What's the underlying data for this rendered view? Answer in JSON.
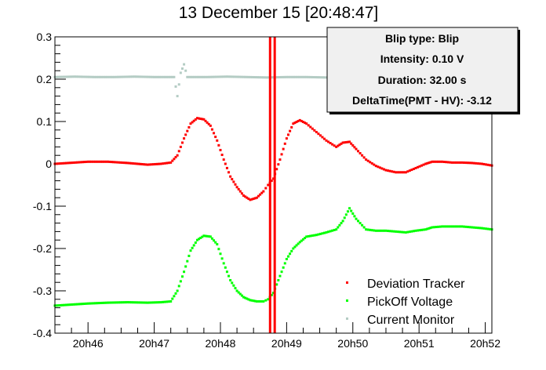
{
  "chart_data": {
    "type": "scatter",
    "title": "13 December 15 [20:48:47]",
    "xlabel": "",
    "ylabel": "",
    "x_unit": "minutes",
    "xlim": [
      45.5,
      52.1
    ],
    "ylim": [
      -0.4,
      0.3
    ],
    "x_tick_values": [
      46,
      47,
      48,
      49,
      50,
      51,
      52
    ],
    "x_tick_labels": [
      "20h46",
      "20h47",
      "20h48",
      "20h49",
      "20h50",
      "20h51",
      "20h52"
    ],
    "y_tick_values": [
      -0.4,
      -0.3,
      -0.2,
      -0.1,
      0,
      0.1,
      0.2,
      0.3
    ],
    "y_tick_labels": [
      "-0.4",
      "-0.3",
      "-0.2",
      "-0.1",
      "0",
      "0.1",
      "0.2",
      "0.3"
    ],
    "grid": false,
    "legend_position": "bottom-right",
    "markers": [
      48.75,
      48.82
    ],
    "marker_color": "#ff0000",
    "info_box": {
      "lines": [
        "Blip type: Blip",
        "Intensity: 0.10 V",
        "Duration: 32.00 s",
        "DeltaTime(PMT - HV): -3.12"
      ]
    },
    "series": [
      {
        "name": "Deviation Tracker",
        "color": "#ff0000",
        "x": [
          45.5,
          45.7,
          46.0,
          46.3,
          46.6,
          46.9,
          47.1,
          47.25,
          47.35,
          47.45,
          47.55,
          47.65,
          47.75,
          47.85,
          47.95,
          48.05,
          48.15,
          48.25,
          48.35,
          48.45,
          48.55,
          48.65,
          48.72,
          48.8,
          48.9,
          49.0,
          49.1,
          49.2,
          49.3,
          49.45,
          49.6,
          49.75,
          49.85,
          49.95,
          50.05,
          50.2,
          50.35,
          50.5,
          50.65,
          50.8,
          50.95,
          51.1,
          51.2,
          51.35,
          51.5,
          51.65,
          51.8,
          51.95,
          52.1
        ],
        "y": [
          0.0,
          0.002,
          0.005,
          0.005,
          0.002,
          -0.002,
          0.0,
          0.003,
          0.02,
          0.06,
          0.095,
          0.108,
          0.105,
          0.09,
          0.055,
          0.01,
          -0.03,
          -0.055,
          -0.075,
          -0.085,
          -0.08,
          -0.065,
          -0.05,
          -0.035,
          0.01,
          0.06,
          0.095,
          0.103,
          0.095,
          0.075,
          0.055,
          0.04,
          0.05,
          0.052,
          0.035,
          0.01,
          -0.005,
          -0.015,
          -0.02,
          -0.02,
          -0.01,
          0.0,
          0.005,
          0.005,
          0.003,
          0.003,
          0.002,
          0.0,
          -0.004
        ]
      },
      {
        "name": "PickOff Voltage",
        "color": "#00ff00",
        "x": [
          45.5,
          45.7,
          46.0,
          46.3,
          46.6,
          46.9,
          47.1,
          47.25,
          47.35,
          47.45,
          47.55,
          47.65,
          47.75,
          47.85,
          47.95,
          48.05,
          48.15,
          48.25,
          48.35,
          48.45,
          48.55,
          48.65,
          48.72,
          48.8,
          48.9,
          49.0,
          49.1,
          49.2,
          49.3,
          49.45,
          49.6,
          49.75,
          49.85,
          49.95,
          50.05,
          50.2,
          50.35,
          50.5,
          50.65,
          50.8,
          50.95,
          51.1,
          51.2,
          51.35,
          51.5,
          51.65,
          51.8,
          51.95,
          52.1
        ],
        "y": [
          -0.335,
          -0.333,
          -0.33,
          -0.328,
          -0.327,
          -0.328,
          -0.327,
          -0.325,
          -0.3,
          -0.255,
          -0.205,
          -0.18,
          -0.17,
          -0.172,
          -0.19,
          -0.235,
          -0.275,
          -0.3,
          -0.315,
          -0.322,
          -0.325,
          -0.325,
          -0.32,
          -0.305,
          -0.265,
          -0.225,
          -0.2,
          -0.185,
          -0.172,
          -0.168,
          -0.162,
          -0.155,
          -0.135,
          -0.105,
          -0.13,
          -0.155,
          -0.158,
          -0.158,
          -0.16,
          -0.162,
          -0.158,
          -0.155,
          -0.15,
          -0.148,
          -0.148,
          -0.148,
          -0.15,
          -0.152,
          -0.155
        ]
      },
      {
        "name": "Current Monitor",
        "color": "#b4ccc4",
        "x": [
          45.5,
          45.8,
          46.1,
          46.4,
          46.7,
          47.0,
          47.3,
          47.35,
          47.4,
          47.45,
          47.5,
          47.8,
          48.1,
          48.4,
          48.7,
          49.0,
          49.3,
          49.6
        ],
        "y": [
          0.205,
          0.206,
          0.205,
          0.205,
          0.206,
          0.205,
          0.205,
          0.16,
          0.215,
          0.235,
          0.205,
          0.205,
          0.206,
          0.205,
          0.204,
          0.205,
          0.205,
          0.204
        ]
      }
    ]
  }
}
